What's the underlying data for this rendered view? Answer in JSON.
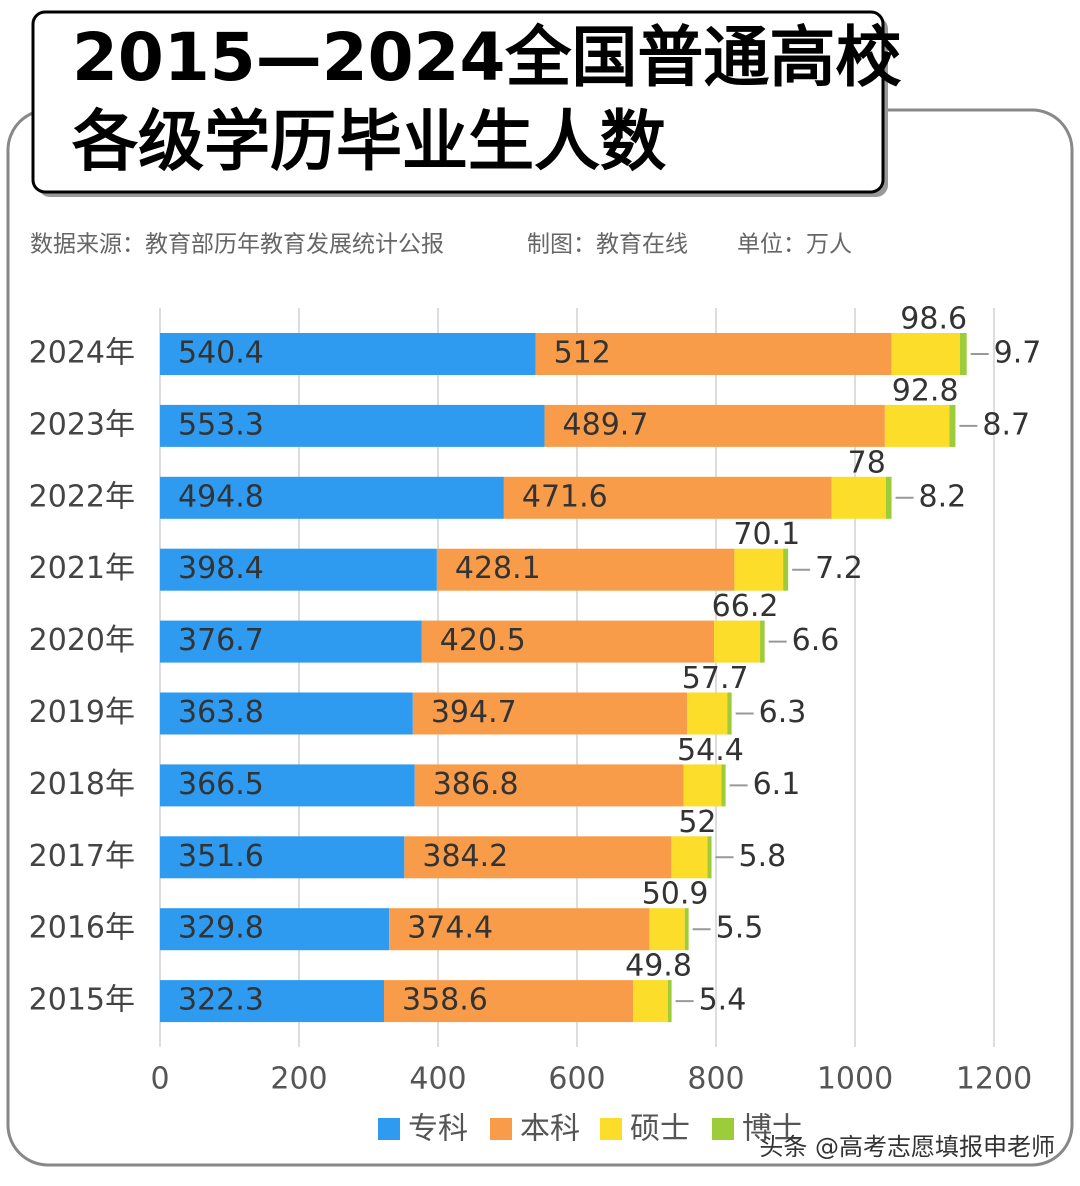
{
  "chart_data": {
    "type": "stacked-bar-horizontal",
    "title": [
      "2015—2024全国普通高校",
      "各级学历毕业生人数"
    ],
    "source": "数据来源：教育部历年教育发展统计公报",
    "credit": "制图：教育在线",
    "unit": "单位：万人",
    "watermark": "头条 @高考志愿填报申老师",
    "categories": [
      "2024年",
      "2023年",
      "2022年",
      "2021年",
      "2020年",
      "2019年",
      "2018年",
      "2017年",
      "2016年",
      "2015年"
    ],
    "series": [
      {
        "name": "专科",
        "color": "#2e9bf0",
        "values": [
          540.4,
          553.3,
          494.8,
          398.4,
          376.7,
          363.8,
          366.5,
          351.6,
          329.8,
          322.3
        ]
      },
      {
        "name": "本科",
        "color": "#f99c4a",
        "values": [
          512,
          489.7,
          471.6,
          428.1,
          420.5,
          394.7,
          386.8,
          384.2,
          374.4,
          358.6
        ]
      },
      {
        "name": "硕士",
        "color": "#fbdd2a",
        "values": [
          98.6,
          92.8,
          78,
          70.1,
          66.2,
          57.7,
          54.4,
          52,
          50.9,
          49.8
        ]
      },
      {
        "name": "博士",
        "color": "#9ccc3a",
        "values": [
          9.7,
          8.7,
          8.2,
          7.2,
          6.6,
          6.3,
          6.1,
          5.8,
          5.5,
          5.4
        ]
      }
    ],
    "xlim": [
      0,
      1200
    ],
    "xticks": [
      0,
      200,
      400,
      600,
      800,
      1000,
      1200
    ],
    "grid": true
  }
}
